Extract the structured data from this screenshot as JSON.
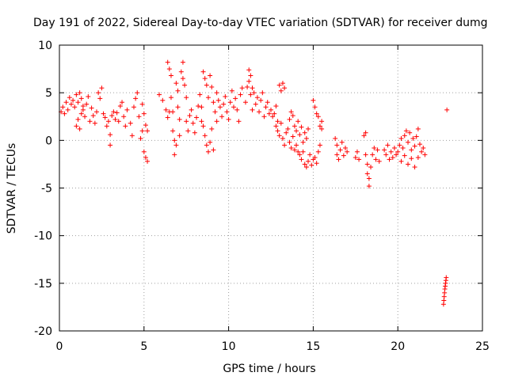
{
  "chart_data": {
    "type": "scatter",
    "title": "Day 191 of 2022, Sidereal Day-to-day VTEC variation (SDTVAR) for receiver dumg",
    "xlabel": "GPS time / hours",
    "ylabel": "SDTVAR / TECUs",
    "xlim": [
      0,
      25
    ],
    "ylim": [
      -20,
      10
    ],
    "xticks": [
      0,
      5,
      10,
      15,
      20,
      25
    ],
    "yticks": [
      -20,
      -15,
      -10,
      -5,
      0,
      5,
      10
    ],
    "xtick_labels": [
      "0",
      "5",
      "10",
      "15",
      "20",
      "25"
    ],
    "ytick_labels": [
      "-20",
      "-15",
      "-10",
      "-5",
      "0",
      "5",
      "10"
    ],
    "grid": true,
    "marker": "+",
    "series": [
      {
        "name": "SDTVAR",
        "color": "#ff0000",
        "segments": [
          [
            [
              0.1,
              3.0
            ],
            [
              0.2,
              3.5
            ],
            [
              0.3,
              2.8
            ],
            [
              0.4,
              4.0
            ],
            [
              0.5,
              3.2
            ],
            [
              0.6,
              4.5
            ],
            [
              0.7,
              3.8
            ],
            [
              0.8,
              4.2
            ],
            [
              0.9,
              3.5
            ],
            [
              1.0,
              4.8
            ],
            [
              1.1,
              4.0
            ],
            [
              1.2,
              5.0
            ],
            [
              1.3,
              4.4
            ],
            [
              1.4,
              3.6
            ]
          ],
          [
            [
              1.0,
              1.5
            ],
            [
              1.1,
              2.2
            ],
            [
              1.2,
              1.2
            ],
            [
              1.3,
              2.8
            ],
            [
              1.4,
              3.2
            ],
            [
              1.5,
              2.5
            ],
            [
              1.6,
              3.8
            ],
            [
              1.7,
              4.6
            ],
            [
              1.8,
              2.0
            ],
            [
              1.9,
              3.4
            ],
            [
              2.0,
              2.6
            ],
            [
              2.1,
              1.8
            ],
            [
              2.2,
              3.0
            ]
          ],
          [
            [
              2.3,
              5.0
            ],
            [
              2.4,
              4.4
            ],
            [
              2.5,
              5.5
            ]
          ],
          [
            [
              2.6,
              2.8
            ],
            [
              2.7,
              2.4
            ],
            [
              2.8,
              1.5
            ],
            [
              2.9,
              2.0
            ],
            [
              3.0,
              0.6
            ],
            [
              3.0,
              -0.5
            ],
            [
              3.1,
              2.6
            ],
            [
              3.2,
              3.0
            ],
            [
              3.3,
              2.2
            ],
            [
              3.4,
              2.9
            ]
          ],
          [
            [
              3.5,
              2.0
            ],
            [
              3.6,
              3.6
            ],
            [
              3.7,
              4.0
            ],
            [
              3.8,
              2.5
            ],
            [
              3.9,
              1.5
            ],
            [
              4.0,
              3.2
            ]
          ],
          [
            [
              4.2,
              1.8
            ],
            [
              4.3,
              0.5
            ],
            [
              4.4,
              3.5
            ],
            [
              4.5,
              4.4
            ],
            [
              4.6,
              5.0
            ],
            [
              4.7,
              2.5
            ],
            [
              4.8,
              0.2
            ],
            [
              4.9,
              1.0
            ]
          ],
          [
            [
              4.9,
              3.8
            ],
            [
              5.0,
              2.8
            ],
            [
              5.1,
              1.6
            ],
            [
              5.2,
              1.0
            ],
            [
              5.0,
              -1.2
            ],
            [
              5.1,
              -1.8
            ],
            [
              5.2,
              -2.2
            ]
          ],
          [
            [
              5.9,
              4.8
            ],
            [
              6.1,
              4.2
            ],
            [
              6.3,
              3.2
            ],
            [
              6.4,
              2.4
            ],
            [
              6.5,
              3.0
            ]
          ],
          [
            [
              6.4,
              8.2
            ],
            [
              6.5,
              7.5
            ],
            [
              6.6,
              6.8
            ],
            [
              6.6,
              4.5
            ],
            [
              6.7,
              3.0
            ],
            [
              6.7,
              1.0
            ],
            [
              6.8,
              0.0
            ],
            [
              6.8,
              -1.5
            ],
            [
              6.9,
              -0.5
            ]
          ],
          [
            [
              6.9,
              6.0
            ],
            [
              7.0,
              5.2
            ],
            [
              7.0,
              3.5
            ],
            [
              7.1,
              2.2
            ],
            [
              7.1,
              0.5
            ],
            [
              7.2,
              7.2
            ],
            [
              7.3,
              8.2
            ],
            [
              7.3,
              6.5
            ],
            [
              7.4,
              5.8
            ],
            [
              7.5,
              4.5
            ],
            [
              7.5,
              2.0
            ]
          ],
          [
            [
              7.6,
              1.0
            ],
            [
              7.7,
              2.6
            ],
            [
              7.8,
              3.2
            ],
            [
              7.9,
              1.8
            ],
            [
              8.0,
              0.8
            ],
            [
              8.1,
              2.4
            ],
            [
              8.2,
              3.6
            ],
            [
              8.3,
              4.8
            ],
            [
              8.4,
              3.5
            ],
            [
              8.4,
              2.0
            ]
          ],
          [
            [
              8.5,
              7.2
            ],
            [
              8.6,
              6.5
            ],
            [
              8.7,
              5.8
            ],
            [
              8.8,
              4.5
            ],
            [
              8.9,
              6.8
            ],
            [
              9.0,
              5.6
            ],
            [
              9.1,
              4.0
            ],
            [
              9.2,
              3.0
            ],
            [
              9.3,
              2.0
            ]
          ],
          [
            [
              8.5,
              1.5
            ],
            [
              8.6,
              0.5
            ],
            [
              8.7,
              -0.5
            ],
            [
              8.8,
              -1.2
            ],
            [
              8.9,
              -0.2
            ],
            [
              9.0,
              1.2
            ],
            [
              9.1,
              -1.0
            ]
          ],
          [
            [
              9.3,
              5.0
            ],
            [
              9.4,
              4.2
            ],
            [
              9.5,
              3.5
            ],
            [
              9.6,
              2.5
            ],
            [
              9.7,
              3.8
            ],
            [
              9.8,
              4.6
            ],
            [
              9.9,
              3.0
            ],
            [
              10.0,
              2.2
            ],
            [
              10.1,
              4.0
            ],
            [
              10.2,
              5.2
            ],
            [
              10.3,
              3.5
            ],
            [
              10.4,
              4.4
            ],
            [
              10.5,
              3.2
            ],
            [
              10.6,
              2.0
            ],
            [
              10.7,
              4.8
            ],
            [
              10.8,
              5.5
            ]
          ],
          [
            [
              11.0,
              4.0
            ],
            [
              11.1,
              5.6
            ],
            [
              11.2,
              6.2
            ],
            [
              11.3,
              4.8
            ],
            [
              11.4,
              3.2
            ],
            [
              11.5,
              5.0
            ],
            [
              11.6,
              3.8
            ],
            [
              11.7,
              4.5
            ],
            [
              11.8,
              3.0
            ],
            [
              11.9,
              4.2
            ],
            [
              12.0,
              5.0
            ],
            [
              12.1,
              2.5
            ],
            [
              12.2,
              3.5
            ],
            [
              12.3,
              4.0
            ],
            [
              12.4,
              2.8
            ]
          ],
          [
            [
              11.2,
              7.4
            ],
            [
              11.3,
              6.8
            ],
            [
              11.4,
              5.5
            ]
          ],
          [
            [
              12.5,
              3.2
            ],
            [
              12.6,
              2.5
            ],
            [
              12.7,
              2.8
            ],
            [
              12.8,
              3.6
            ],
            [
              12.9,
              2.0
            ],
            [
              13.0,
              5.8
            ],
            [
              13.1,
              5.2
            ],
            [
              13.2,
              6.0
            ],
            [
              13.3,
              5.5
            ]
          ],
          [
            [
              12.8,
              1.5
            ],
            [
              12.9,
              1.0
            ],
            [
              13.0,
              0.5
            ],
            [
              13.1,
              1.8
            ],
            [
              13.2,
              0.2
            ],
            [
              13.3,
              -0.5
            ],
            [
              13.4,
              0.8
            ],
            [
              13.5,
              1.2
            ],
            [
              13.6,
              -0.2
            ],
            [
              13.7,
              -0.8
            ],
            [
              13.8,
              0.4
            ],
            [
              13.9,
              -1.0
            ],
            [
              14.0,
              -0.5
            ],
            [
              14.1,
              -1.2
            ]
          ],
          [
            [
              13.6,
              2.2
            ],
            [
              13.7,
              3.0
            ],
            [
              13.8,
              2.6
            ],
            [
              13.9,
              1.5
            ],
            [
              14.0,
              1.0
            ],
            [
              14.1,
              2.0
            ],
            [
              14.2,
              0.6
            ],
            [
              14.3,
              1.4
            ],
            [
              14.4,
              -0.2
            ],
            [
              14.5,
              0.8
            ],
            [
              14.6,
              0.2
            ],
            [
              14.7,
              1.2
            ]
          ],
          [
            [
              14.2,
              -1.5
            ],
            [
              14.3,
              -2.0
            ],
            [
              14.4,
              -1.2
            ],
            [
              14.5,
              -2.5
            ],
            [
              14.6,
              -2.8
            ],
            [
              14.7,
              -2.2
            ],
            [
              14.8,
              -1.5
            ],
            [
              14.9,
              -2.6
            ],
            [
              15.0,
              -2.0
            ],
            [
              15.1,
              -1.8
            ],
            [
              15.2,
              -2.4
            ],
            [
              15.3,
              -1.2
            ],
            [
              15.4,
              -0.5
            ]
          ],
          [
            [
              15.0,
              4.2
            ],
            [
              15.1,
              3.5
            ],
            [
              15.2,
              2.8
            ],
            [
              15.3,
              2.5
            ],
            [
              15.4,
              1.5
            ],
            [
              15.5,
              2.0
            ],
            [
              15.5,
              1.2
            ]
          ],
          [
            [
              16.3,
              0.2
            ],
            [
              16.4,
              -0.5
            ],
            [
              16.4,
              -1.5
            ],
            [
              16.5,
              -2.0
            ],
            [
              16.6,
              -1.0
            ],
            [
              16.7,
              -0.2
            ],
            [
              16.8,
              -1.6
            ],
            [
              16.9,
              -0.8
            ],
            [
              17.0,
              -1.2
            ]
          ],
          [
            [
              17.5,
              -1.8
            ],
            [
              17.6,
              -1.2
            ],
            [
              17.7,
              -2.0
            ]
          ],
          [
            [
              18.0,
              0.5
            ],
            [
              18.1,
              0.8
            ],
            [
              18.1,
              -1.5
            ],
            [
              18.2,
              -2.5
            ],
            [
              18.2,
              -3.5
            ],
            [
              18.3,
              -4.8
            ],
            [
              18.3,
              -4.0
            ],
            [
              18.4,
              -2.8
            ],
            [
              18.5,
              -1.5
            ],
            [
              18.6,
              -0.8
            ],
            [
              18.7,
              -2.0
            ],
            [
              18.8,
              -1.0
            ],
            [
              18.9,
              -2.2
            ]
          ],
          [
            [
              19.2,
              -1.0
            ],
            [
              19.3,
              -1.5
            ],
            [
              19.4,
              -0.5
            ],
            [
              19.5,
              -2.0
            ],
            [
              19.6,
              -1.2
            ],
            [
              19.7,
              -1.8
            ],
            [
              19.8,
              -0.8
            ],
            [
              19.9,
              -1.5
            ]
          ],
          [
            [
              20.0,
              -1.2
            ],
            [
              20.1,
              -0.5
            ],
            [
              20.2,
              0.2
            ],
            [
              20.3,
              -0.8
            ],
            [
              20.4,
              0.5
            ],
            [
              20.5,
              1.0
            ],
            [
              20.6,
              -0.2
            ],
            [
              20.7,
              0.8
            ],
            [
              20.8,
              -1.0
            ],
            [
              20.9,
              0.2
            ],
            [
              21.0,
              -0.6
            ],
            [
              21.1,
              0.4
            ],
            [
              21.2,
              1.2
            ],
            [
              21.3,
              -0.4
            ],
            [
              21.4,
              -1.2
            ],
            [
              21.5,
              -0.8
            ],
            [
              21.6,
              -1.5
            ]
          ],
          [
            [
              20.2,
              -2.2
            ],
            [
              20.4,
              -1.6
            ],
            [
              20.6,
              -2.5
            ],
            [
              20.8,
              -1.9
            ],
            [
              21.0,
              -2.8
            ],
            [
              21.2,
              -1.8
            ]
          ],
          [
            [
              22.7,
              -17.2
            ],
            [
              22.72,
              -16.8
            ],
            [
              22.74,
              -16.4
            ],
            [
              22.76,
              -16.0
            ],
            [
              22.78,
              -15.6
            ],
            [
              22.8,
              -15.3
            ],
            [
              22.82,
              -15.0
            ],
            [
              22.84,
              -14.7
            ],
            [
              22.86,
              -14.4
            ]
          ],
          [
            [
              22.9,
              3.2
            ]
          ]
        ]
      }
    ]
  }
}
